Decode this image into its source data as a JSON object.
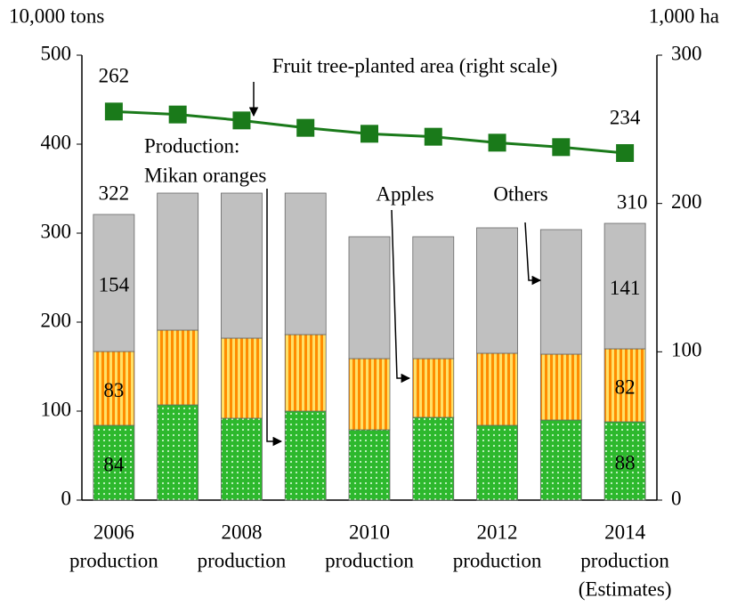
{
  "chart_data": {
    "type": "stacked_bar_line",
    "y_axis_label": "10,000 tons",
    "y2_axis_label": "1,000 ha",
    "categories": [
      [
        "2006",
        "production"
      ],
      null,
      [
        "2008",
        "production"
      ],
      null,
      [
        "2010",
        "production"
      ],
      null,
      [
        "2012",
        "production"
      ],
      null,
      [
        "2014",
        "production",
        "(Estimates)"
      ]
    ],
    "series": [
      {
        "name": "Mikan oranges",
        "color": "#2db82d",
        "pattern": "dots",
        "values": [
          84,
          107,
          92,
          100,
          79,
          93,
          84,
          90,
          88
        ],
        "value_labels": [
          "84",
          null,
          null,
          null,
          null,
          null,
          null,
          null,
          "88"
        ]
      },
      {
        "name": "Apples",
        "color": "#ff8c00",
        "pattern": "stripes",
        "values": [
          83,
          84,
          90,
          86,
          80,
          66,
          81,
          74,
          82
        ],
        "value_labels": [
          "83",
          null,
          null,
          null,
          null,
          null,
          null,
          null,
          "82"
        ]
      },
      {
        "name": "Others",
        "color": "#c0c0c0",
        "pattern": "none",
        "values": [
          154,
          154,
          163,
          159,
          137,
          137,
          141,
          140,
          141
        ],
        "value_labels": [
          "154",
          null,
          null,
          null,
          null,
          null,
          null,
          null,
          "141"
        ]
      },
      {
        "name": "Fruit tree-planted area",
        "type": "line",
        "axis": "y2",
        "color": "#1a7a1a",
        "values": [
          262,
          260,
          256,
          251,
          247,
          245,
          241,
          238,
          234
        ],
        "value_labels": [
          "262",
          null,
          null,
          null,
          null,
          null,
          null,
          null,
          "234"
        ]
      }
    ],
    "totals": [
      322,
      null,
      null,
      null,
      null,
      null,
      null,
      null,
      310
    ],
    "annotations": [
      "Fruit tree-planted area (right scale)",
      "Production:",
      "Mikan oranges",
      "Apples",
      "Others"
    ],
    "ylim": [
      0,
      500
    ],
    "yticks": [
      0,
      100,
      200,
      300,
      400,
      500
    ],
    "y2lim": [
      0,
      300
    ],
    "y2ticks": [
      0,
      100,
      200,
      300
    ],
    "grid": false
  }
}
